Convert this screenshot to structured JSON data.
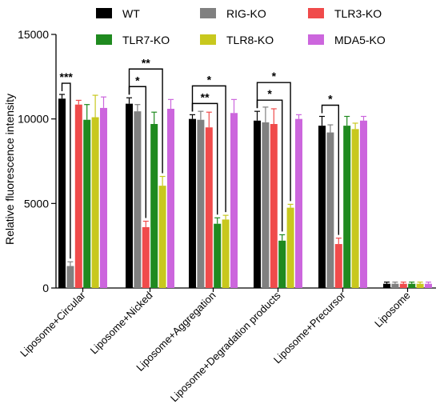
{
  "chart_data": {
    "type": "bar",
    "ylabel": "Relative fluorescence intensity",
    "ylim": [
      0,
      15000
    ],
    "yticks": [
      0,
      5000,
      10000,
      15000
    ],
    "legend_position": "top",
    "categories": [
      "Liposome+Circular",
      "Liposome+Nicked",
      "Liposome+Aggregation",
      "Liposome+Degradation products",
      "Liposome+Precursor",
      "Liposome"
    ],
    "series": [
      {
        "name": "WT",
        "color": "#000000",
        "values": [
          11200,
          10900,
          10000,
          9900,
          9600,
          250
        ],
        "errors": [
          250,
          350,
          250,
          550,
          550,
          100
        ]
      },
      {
        "name": "RIG-KO",
        "color": "#808080",
        "values": [
          1300,
          10450,
          9950,
          9800,
          9200,
          250
        ],
        "errors": [
          250,
          400,
          500,
          900,
          450,
          100
        ]
      },
      {
        "name": "TLR3-KO",
        "color": "#f04b4b",
        "values": [
          10850,
          3600,
          9500,
          9700,
          2600,
          250
        ],
        "errors": [
          250,
          350,
          900,
          900,
          350,
          100
        ]
      },
      {
        "name": "TLR7-KO",
        "color": "#1f8a1f",
        "values": [
          9950,
          9700,
          3800,
          2800,
          9600,
          250
        ],
        "errors": [
          900,
          700,
          350,
          350,
          550,
          100
        ]
      },
      {
        "name": "TLR8-KO",
        "color": "#c8c81e",
        "values": [
          10100,
          6050,
          4050,
          4750,
          9400,
          250
        ],
        "errors": [
          1300,
          550,
          250,
          200,
          350,
          100
        ]
      },
      {
        "name": "MDA5-KO",
        "color": "#cc66dd",
        "values": [
          10650,
          10600,
          10350,
          10000,
          9900,
          250
        ],
        "errors": [
          650,
          550,
          800,
          250,
          250,
          100
        ]
      }
    ],
    "significance": [
      {
        "category": 0,
        "from": "WT",
        "to": "RIG-KO",
        "label": "***"
      },
      {
        "category": 1,
        "from": "WT",
        "to": "TLR3-KO",
        "label": "*"
      },
      {
        "category": 1,
        "from": "WT",
        "to": "TLR8-KO",
        "label": "**"
      },
      {
        "category": 2,
        "from": "WT",
        "to": "TLR7-KO",
        "label": "**"
      },
      {
        "category": 2,
        "from": "WT",
        "to": "TLR8-KO",
        "label": "*"
      },
      {
        "category": 3,
        "from": "WT",
        "to": "TLR7-KO",
        "label": "*"
      },
      {
        "category": 3,
        "from": "WT",
        "to": "TLR8-KO",
        "label": "*"
      },
      {
        "category": 4,
        "from": "WT",
        "to": "TLR3-KO",
        "label": "*"
      }
    ]
  }
}
